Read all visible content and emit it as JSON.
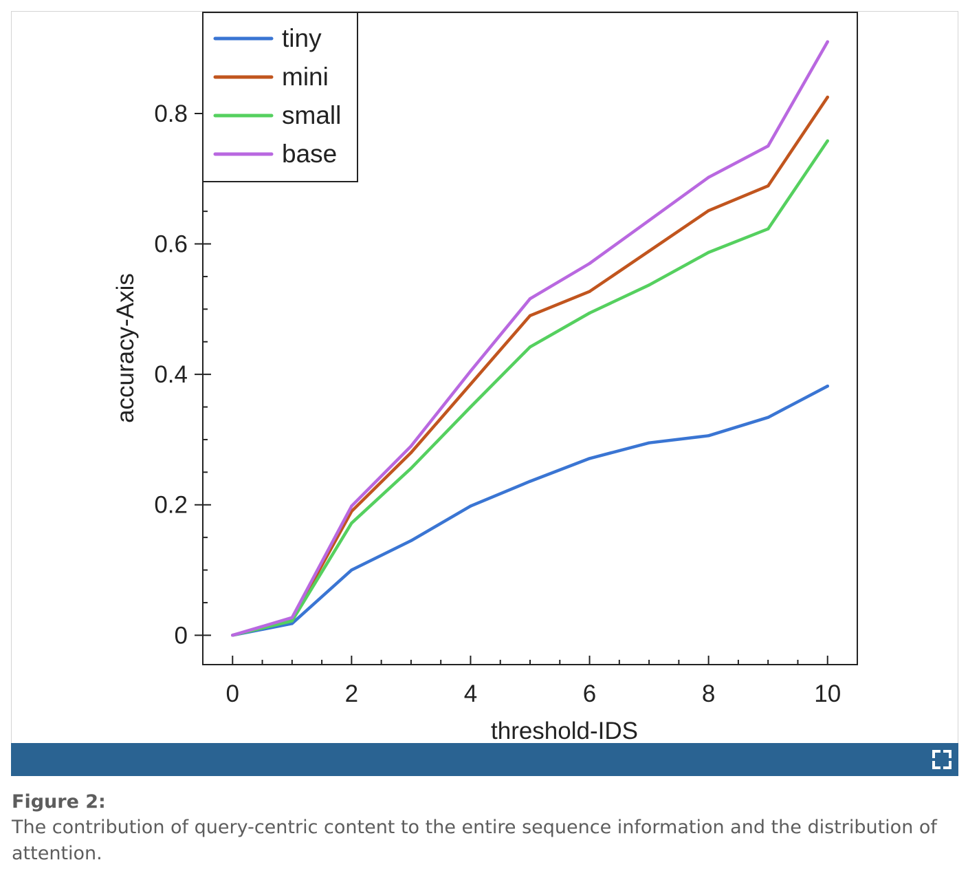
{
  "chart_data": {
    "type": "line",
    "x": [
      0,
      1,
      2,
      3,
      4,
      5,
      6,
      7,
      8,
      9,
      10
    ],
    "xlabel": "threshold-IDS",
    "ylabel": "accuracy-Axis",
    "xlim": [
      -0.5,
      10.5
    ],
    "ylim": [
      -0.045,
      0.955
    ],
    "xticks": [
      0,
      2,
      4,
      6,
      8,
      10
    ],
    "xtick_labels": [
      "0",
      "2",
      "4",
      "6",
      "8",
      "10"
    ],
    "yticks": [
      0,
      0.2,
      0.4,
      0.6,
      0.8
    ],
    "ytick_labels": [
      "0",
      "0.2",
      "0.4",
      "0.6",
      "0.8"
    ],
    "grid": false,
    "legend": "top-left",
    "series": [
      {
        "name": "tiny",
        "color": "#3a75d3",
        "values": [
          0,
          0.018,
          0.1,
          0.145,
          0.198,
          0.236,
          0.271,
          0.295,
          0.306,
          0.334,
          0.382
        ]
      },
      {
        "name": "mini",
        "color": "#c1551e",
        "values": [
          0,
          0.024,
          0.19,
          0.28,
          0.385,
          0.49,
          0.527,
          0.589,
          0.651,
          0.689,
          0.825
        ]
      },
      {
        "name": "small",
        "color": "#55d05f",
        "values": [
          0,
          0.022,
          0.172,
          0.256,
          0.35,
          0.442,
          0.494,
          0.537,
          0.587,
          0.623,
          0.758
        ]
      },
      {
        "name": "base",
        "color": "#b968e0",
        "values": [
          0,
          0.027,
          0.198,
          0.29,
          0.405,
          0.516,
          0.57,
          0.636,
          0.702,
          0.75,
          0.91
        ]
      }
    ]
  },
  "caption": {
    "title": "Figure 2:",
    "text": "The contribution of query-centric content to the entire sequence information and the distribution of attention."
  },
  "toolbar": {
    "icon": "expand-icon",
    "color": "#2a6392"
  }
}
